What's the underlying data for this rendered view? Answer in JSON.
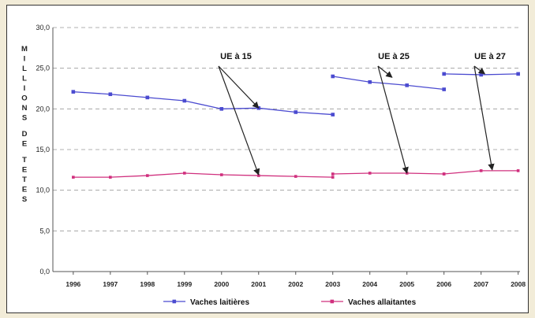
{
  "chart_data": {
    "type": "line",
    "title": "",
    "xlabel": "",
    "ylabel": "MILLIONS DE TETES",
    "ylim": [
      0,
      30
    ],
    "yticks": [
      "0,0",
      "5,0",
      "10,0",
      "15,0",
      "20,0",
      "25,0",
      "30,0"
    ],
    "categories": [
      "1996",
      "1997",
      "1998",
      "1999",
      "2000",
      "2001",
      "2002",
      "2003",
      "2004",
      "2005",
      "2006",
      "2007",
      "2008"
    ],
    "grid": "horizontal-dashed",
    "legend": "bottom",
    "series": [
      {
        "name": "Vaches laitières",
        "color": "#4b4bd0",
        "segments": [
          [
            [
              "1996",
              22.1
            ],
            [
              "1997",
              21.8
            ],
            [
              "1998",
              21.4
            ],
            [
              "1999",
              21.0
            ],
            [
              "2000",
              20.0
            ],
            [
              "2001",
              20.1
            ],
            [
              "2002",
              19.6
            ],
            [
              "2003",
              19.3
            ]
          ],
          [
            [
              "2003",
              24.0
            ],
            [
              "2004",
              23.3
            ],
            [
              "2005",
              22.9
            ],
            [
              "2006",
              22.4
            ]
          ],
          [
            [
              "2006",
              24.3
            ],
            [
              "2007",
              24.2
            ],
            [
              "2008",
              24.3
            ]
          ]
        ]
      },
      {
        "name": "Vaches allaitantes",
        "color": "#d0307e",
        "segments": [
          [
            [
              "1996",
              11.6
            ],
            [
              "1997",
              11.6
            ],
            [
              "1998",
              11.8
            ],
            [
              "1999",
              12.1
            ],
            [
              "2000",
              11.9
            ],
            [
              "2001",
              11.8
            ],
            [
              "2002",
              11.7
            ],
            [
              "2003",
              11.6
            ]
          ],
          [
            [
              "2003",
              12.0
            ],
            [
              "2004",
              12.1
            ],
            [
              "2005",
              12.1
            ],
            [
              "2006",
              12.0
            ]
          ],
          [
            [
              "2006",
              12.0
            ],
            [
              "2007",
              12.4
            ],
            [
              "2008",
              12.4
            ]
          ]
        ]
      }
    ],
    "annotations": [
      {
        "label": "UE à 15",
        "targets": [
          [
            "2001",
            20.1
          ],
          [
            "2001",
            11.9
          ]
        ]
      },
      {
        "label": "UE à 25",
        "targets": [
          [
            "2004.6",
            23.1
          ],
          [
            "2005",
            12.1
          ]
        ]
      },
      {
        "label": "UE à 27",
        "targets": [
          [
            "2007.1",
            24.3
          ],
          [
            "2007.3",
            12.5
          ]
        ]
      }
    ]
  }
}
